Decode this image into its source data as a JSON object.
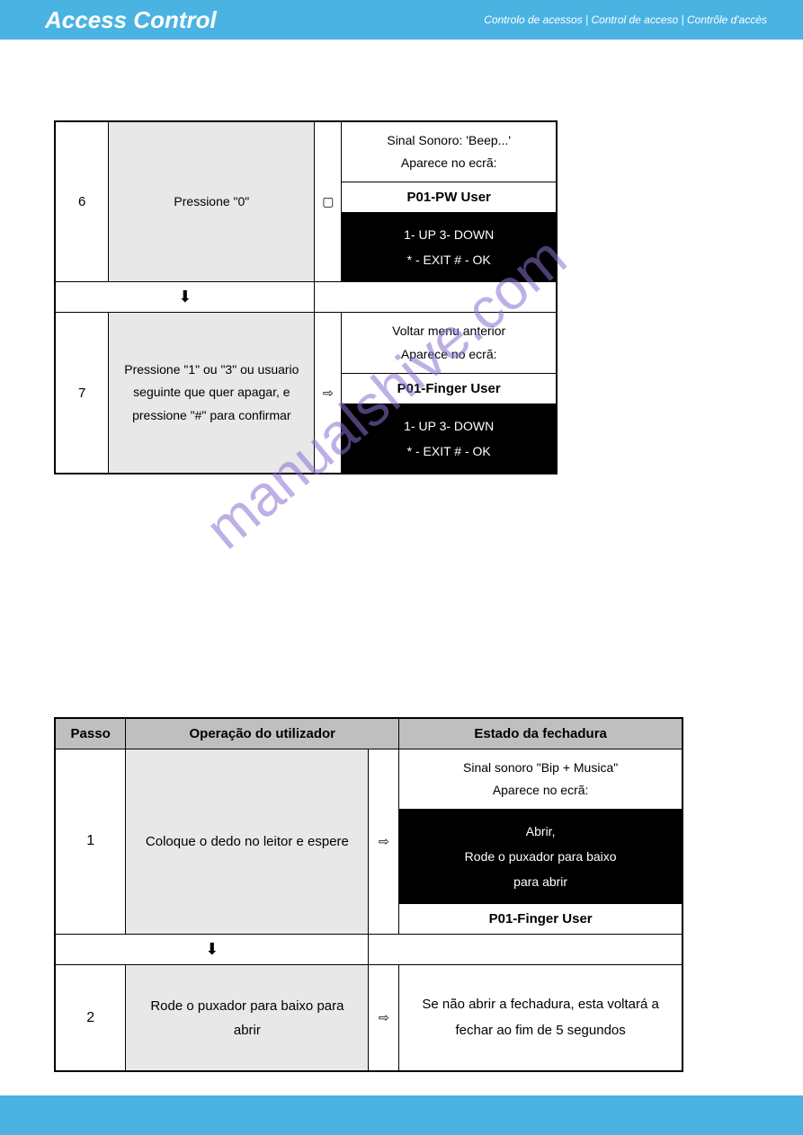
{
  "header": {
    "title": "Access Control",
    "subtitle": "Controlo de acessos | Control de acceso | Contrôle d'accès"
  },
  "watermark": "manualshive.com",
  "colors": {
    "banner": "#4ab3e2",
    "grey_cell": "#e8e8e8",
    "black_cell": "#000000",
    "header_grey": "#bfbfbf",
    "watermark": "#8a6fd4"
  },
  "arrows": {
    "right": "⇨",
    "down": "➡",
    "right_outline": "⇨"
  },
  "table1": {
    "row6": {
      "step": "6",
      "op": "Pressione \"0\"",
      "arrow": "▢",
      "state_top_l1": "Sinal Sonoro: 'Beep...'",
      "state_top_l2": "Aparece no ecrã:",
      "state_mid": "P01-PW User",
      "state_black_l1": "1- UP     3- DOWN",
      "state_black_l2": "* - EXIT     # - OK"
    },
    "down_arrow": "⬇",
    "row7": {
      "step": "7",
      "op": "Pressione \"1\" ou \"3\" ou usuario seguinte que quer apagar, e pressione \"#\" para confirmar",
      "arrow": "⇨",
      "state_top_l1": "Voltar menu anterior",
      "state_top_l2": "Aparece no ecrã:",
      "state_mid": "P01-Finger User",
      "state_black_l1": "1- UP     3- DOWN",
      "state_black_l2": "* - EXIT     # - OK"
    }
  },
  "table2": {
    "headers": {
      "passo": "Passo",
      "operacao": "Operação do utilizador",
      "estado": "Estado da fechadura"
    },
    "row1": {
      "step": "1",
      "op": "Coloque o dedo no leitor e espere",
      "arrow": "⇨",
      "state_top_l1": "Sinal sonoro \"Bip + Musica\"",
      "state_top_l2": "Aparece no ecrã:",
      "state_black_l1": "Abrir,",
      "state_black_l2": "Rode o puxador para baixo",
      "state_black_l3": "para abrir",
      "state_mid": "P01-Finger User"
    },
    "down_arrow": "⬇",
    "row2": {
      "step": "2",
      "op": "Rode o puxador para baixo para abrir",
      "arrow": "⇨",
      "state": "Se não abrir a fechadura, esta voltará a fechar ao fim de 5 segundos"
    }
  }
}
